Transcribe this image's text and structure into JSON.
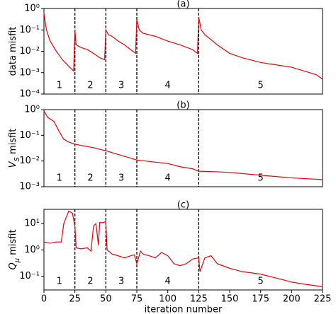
{
  "chart_data": [
    {
      "type": "line",
      "title": "(a)",
      "y_label": [
        {
          "text": "data misfit"
        }
      ],
      "x": [
        0,
        2,
        5,
        10,
        15,
        20,
        24,
        25,
        26,
        30,
        35,
        40,
        45,
        49,
        50,
        52,
        55,
        60,
        65,
        70,
        74,
        75,
        77,
        80,
        90,
        100,
        110,
        120,
        124,
        125,
        127,
        130,
        140,
        150,
        160,
        175,
        190,
        200,
        210,
        220,
        225
      ],
      "series": [
        {
          "color": "#e8000b",
          "values": [
            0.6,
            0.1,
            0.03,
            0.01,
            0.004,
            0.002,
            0.0012,
            0.1,
            0.02,
            0.015,
            0.012,
            0.008,
            0.005,
            0.004,
            0.1,
            0.06,
            0.05,
            0.03,
            0.02,
            0.012,
            0.008,
            0.3,
            0.1,
            0.07,
            0.05,
            0.03,
            0.02,
            0.012,
            0.008,
            0.4,
            0.1,
            0.06,
            0.02,
            0.008,
            0.005,
            0.003,
            0.0022,
            0.0018,
            0.0012,
            0.0008,
            0.0005
          ]
        }
      ],
      "xlim": [
        0,
        225
      ],
      "ylim": [
        0.0001,
        1
      ],
      "log_scale": true,
      "yticks": [
        {
          "value": 1,
          "label": "10⁰"
        },
        {
          "value": 0.1,
          "label": "10⁻¹"
        },
        {
          "value": 0.01,
          "label": "10⁻²"
        },
        {
          "value": 0.001,
          "label": "10⁻³"
        },
        {
          "value": 0.0001,
          "label": "10⁻⁴"
        }
      ],
      "stage_boundaries": [
        25,
        50,
        75,
        125
      ],
      "stages": [
        "1",
        "2",
        "3",
        "4",
        "5"
      ]
    },
    {
      "type": "line",
      "title": "(b)",
      "y_label": [
        {
          "text": "V",
          "style": "italic"
        },
        {
          "text": "S",
          "style": "italic",
          "sub": true
        },
        {
          "text": " misfit"
        }
      ],
      "x": [
        0,
        3,
        8,
        12,
        16,
        20,
        25,
        40,
        50,
        60,
        70,
        75,
        90,
        100,
        110,
        120,
        125,
        140,
        150,
        175,
        200,
        225
      ],
      "series": [
        {
          "color": "#e8000b",
          "values": [
            0.9,
            0.5,
            0.35,
            0.15,
            0.07,
            0.055,
            0.045,
            0.033,
            0.025,
            0.018,
            0.013,
            0.011,
            0.009,
            0.008,
            0.006,
            0.005,
            0.004,
            0.0038,
            0.0036,
            0.0028,
            0.0022,
            0.0019
          ]
        }
      ],
      "xlim": [
        0,
        225
      ],
      "ylim": [
        0.001,
        1
      ],
      "log_scale": true,
      "yticks": [
        {
          "value": 1,
          "label": "10⁰"
        },
        {
          "value": 0.1,
          "label": "10⁻¹"
        },
        {
          "value": 0.01,
          "label": "10⁻²"
        },
        {
          "value": 0.001,
          "label": "10⁻³"
        }
      ],
      "stage_boundaries": [
        25,
        50,
        75,
        125
      ],
      "stages": [
        "1",
        "2",
        "3",
        "4",
        "5"
      ]
    },
    {
      "type": "line",
      "title": "(c)",
      "y_label": [
        {
          "text": "Q",
          "style": "italic"
        },
        {
          "text": "μ",
          "style": "italic",
          "sub": true
        },
        {
          "text": " misfit"
        }
      ],
      "x_label": "iteration number",
      "x": [
        0,
        5,
        10,
        14,
        16,
        20,
        23,
        25,
        26,
        30,
        35,
        38,
        40,
        42,
        44,
        45,
        48,
        50,
        51,
        55,
        60,
        65,
        70,
        73,
        75,
        78,
        80,
        85,
        90,
        95,
        100,
        105,
        110,
        115,
        120,
        125,
        126,
        130,
        135,
        140,
        150,
        160,
        175,
        190,
        200,
        210,
        225
      ],
      "series": [
        {
          "color": "#e8000b",
          "values": [
            2,
            1.8,
            2,
            2,
            10,
            30,
            25,
            8,
            1.2,
            1.1,
            1.2,
            0.9,
            8,
            10,
            1.5,
            11,
            11,
            12,
            1,
            0.7,
            0.6,
            0.5,
            0.6,
            0.65,
            0.3,
            0.9,
            0.7,
            0.6,
            0.5,
            0.8,
            0.6,
            0.3,
            0.25,
            0.3,
            0.45,
            0.5,
            0.15,
            0.5,
            0.6,
            0.3,
            0.2,
            0.15,
            0.12,
            0.08,
            0.06,
            0.05,
            0.04
          ]
        }
      ],
      "xlim": [
        0,
        225
      ],
      "ylim": [
        0.03,
        35
      ],
      "log_scale": true,
      "xticks": [
        0,
        25,
        50,
        75,
        100,
        125,
        150,
        175,
        200,
        225
      ],
      "yticks": [
        {
          "value": 10,
          "label": "10¹"
        },
        {
          "value": 1,
          "label": "10⁰"
        },
        {
          "value": 0.1,
          "label": "10⁻¹"
        }
      ],
      "stage_boundaries": [
        25,
        50,
        75,
        125
      ],
      "stages": [
        "1",
        "2",
        "3",
        "4",
        "5"
      ]
    }
  ]
}
